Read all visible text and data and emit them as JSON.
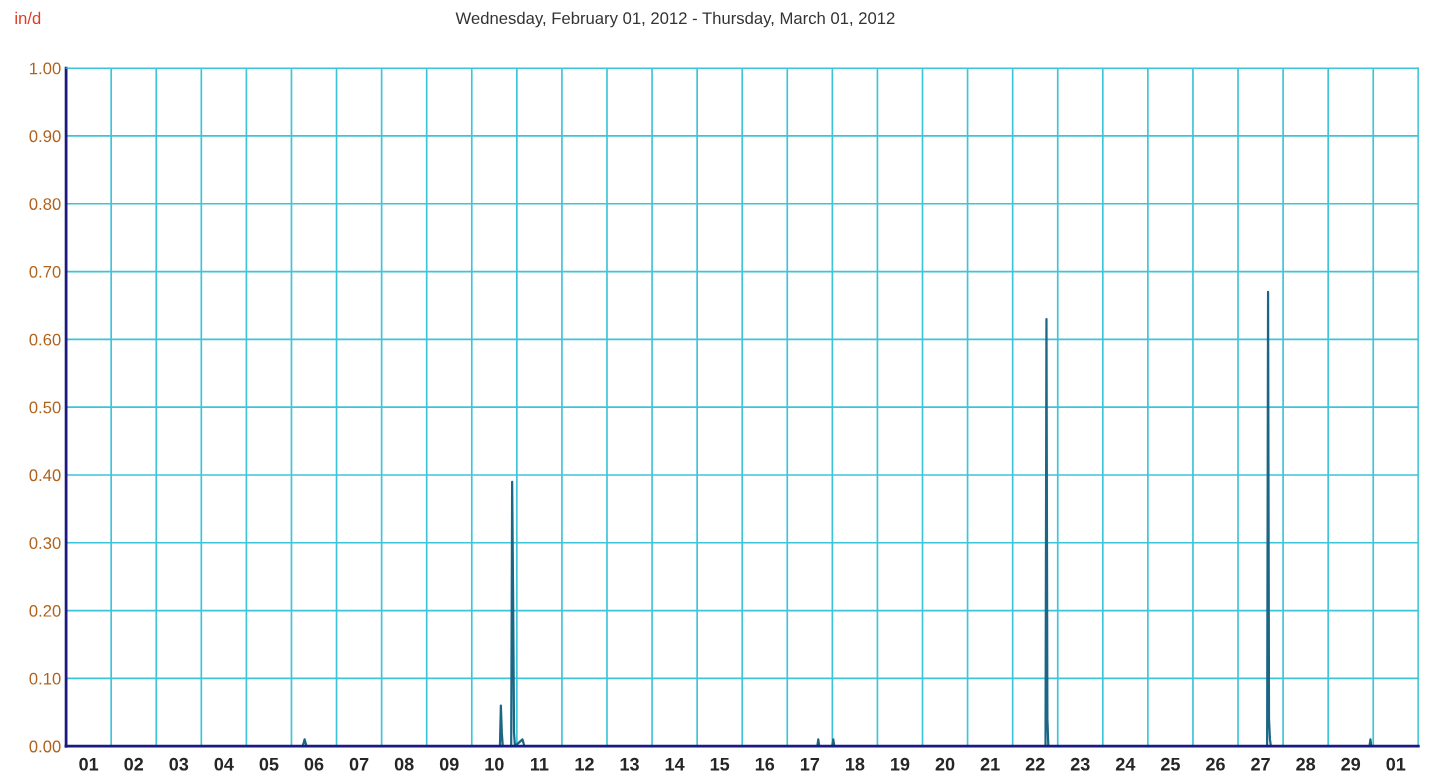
{
  "chart_data": {
    "type": "line",
    "title": "Wednesday, February 01, 2012 - Thursday, March 01, 2012",
    "ylabel": "in/d",
    "x": [
      "2012-02-01T00:00",
      "2012-02-06T06:00",
      "2012-02-06T07:00",
      "2012-02-06T08:00",
      "2012-02-10T15:00",
      "2012-02-10T15:30",
      "2012-02-10T16:00",
      "2012-02-10T16:30",
      "2012-02-10T21:00",
      "2012-02-10T21:30",
      "2012-02-10T22:00",
      "2012-02-10T22:30",
      "2012-02-10T23:00",
      "2012-02-11T03:00",
      "2012-02-11T04:00",
      "2012-02-17T16:00",
      "2012-02-17T16:30",
      "2012-02-17T17:00",
      "2012-02-18T00:00",
      "2012-02-18T00:30",
      "2012-02-18T01:00",
      "2012-02-22T17:30",
      "2012-02-22T18:00",
      "2012-02-22T18:30",
      "2012-02-22T19:00",
      "2012-02-27T15:30",
      "2012-02-27T16:00",
      "2012-02-27T16:30",
      "2012-02-27T17:00",
      "2012-02-27T17:30",
      "2012-02-29T22:00",
      "2012-02-29T22:30",
      "2012-02-29T23:00",
      "2012-03-02T00:00"
    ],
    "series": [
      {
        "color": "#1b6585",
        "values": [
          0,
          0,
          0.01,
          0,
          0,
          0.06,
          0.02,
          0,
          0,
          0.39,
          0.23,
          0.02,
          0,
          0.01,
          0,
          0,
          0.01,
          0,
          0,
          0.01,
          0,
          0,
          0.63,
          0.04,
          0,
          0,
          0.67,
          0.04,
          0.01,
          0,
          0,
          0.01,
          0,
          0
        ]
      }
    ],
    "xlim": [
      "2012-02-01T00:00",
      "2012-03-02T00:00"
    ],
    "xticks": [
      {
        "value": "2012-02-01T00:00",
        "label": null
      },
      {
        "value": "2012-02-02T00:00",
        "label": null
      },
      {
        "value": "2012-02-03T00:00",
        "label": null
      },
      {
        "value": "2012-02-04T00:00",
        "label": null
      },
      {
        "value": "2012-02-05T00:00",
        "label": null
      },
      {
        "value": "2012-02-06T00:00",
        "label": null
      },
      {
        "value": "2012-02-07T00:00",
        "label": null
      },
      {
        "value": "2012-02-08T00:00",
        "label": null
      },
      {
        "value": "2012-02-09T00:00",
        "label": null
      },
      {
        "value": "2012-02-10T00:00",
        "label": null
      },
      {
        "value": "2012-02-11T00:00",
        "label": null
      },
      {
        "value": "2012-02-12T00:00",
        "label": null
      },
      {
        "value": "2012-02-13T00:00",
        "label": null
      },
      {
        "value": "2012-02-14T00:00",
        "label": null
      },
      {
        "value": "2012-02-15T00:00",
        "label": null
      },
      {
        "value": "2012-02-16T00:00",
        "label": null
      },
      {
        "value": "2012-02-17T00:00",
        "label": null
      },
      {
        "value": "2012-02-18T00:00",
        "label": null
      },
      {
        "value": "2012-02-19T00:00",
        "label": null
      },
      {
        "value": "2012-02-20T00:00",
        "label": null
      },
      {
        "value": "2012-02-21T00:00",
        "label": null
      },
      {
        "value": "2012-02-22T00:00",
        "label": null
      },
      {
        "value": "2012-02-23T00:00",
        "label": null
      },
      {
        "value": "2012-02-24T00:00",
        "label": null
      },
      {
        "value": "2012-02-25T00:00",
        "label": null
      },
      {
        "value": "2012-02-26T00:00",
        "label": null
      },
      {
        "value": "2012-02-27T00:00",
        "label": null
      },
      {
        "value": "2012-02-28T00:00",
        "label": null
      },
      {
        "value": "2012-02-29T00:00",
        "label": null
      },
      {
        "value": "2012-03-01T00:00",
        "label": null
      },
      {
        "value": "2012-03-02T00:00",
        "label": null
      },
      {
        "value": "2012-02-01T12:00",
        "label": "01"
      },
      {
        "value": "2012-02-02T12:00",
        "label": "02"
      },
      {
        "value": "2012-02-03T12:00",
        "label": "03"
      },
      {
        "value": "2012-02-04T12:00",
        "label": "04"
      },
      {
        "value": "2012-02-05T12:00",
        "label": "05"
      },
      {
        "value": "2012-02-06T12:00",
        "label": "06"
      },
      {
        "value": "2012-02-07T12:00",
        "label": "07"
      },
      {
        "value": "2012-02-08T12:00",
        "label": "08"
      },
      {
        "value": "2012-02-09T12:00",
        "label": "09"
      },
      {
        "value": "2012-02-10T12:00",
        "label": "10"
      },
      {
        "value": "2012-02-11T12:00",
        "label": "11"
      },
      {
        "value": "2012-02-12T12:00",
        "label": "12"
      },
      {
        "value": "2012-02-13T12:00",
        "label": "13"
      },
      {
        "value": "2012-02-14T12:00",
        "label": "14"
      },
      {
        "value": "2012-02-15T12:00",
        "label": "15"
      },
      {
        "value": "2012-02-16T12:00",
        "label": "16"
      },
      {
        "value": "2012-02-17T12:00",
        "label": "17"
      },
      {
        "value": "2012-02-18T12:00",
        "label": "18"
      },
      {
        "value": "2012-02-19T12:00",
        "label": "19"
      },
      {
        "value": "2012-02-20T12:00",
        "label": "20"
      },
      {
        "value": "2012-02-21T12:00",
        "label": "21"
      },
      {
        "value": "2012-02-22T12:00",
        "label": "22"
      },
      {
        "value": "2012-02-23T12:00",
        "label": "23"
      },
      {
        "value": "2012-02-24T12:00",
        "label": "24"
      },
      {
        "value": "2012-02-25T12:00",
        "label": "25"
      },
      {
        "value": "2012-02-26T12:00",
        "label": "26"
      },
      {
        "value": "2012-02-27T12:00",
        "label": "27"
      },
      {
        "value": "2012-02-28T12:00",
        "label": "28"
      },
      {
        "value": "2012-02-29T12:00",
        "label": "29"
      },
      {
        "value": "2012-03-01T12:00",
        "label": "01"
      }
    ],
    "ylim": [
      0,
      1
    ],
    "yticks": [
      {
        "value": 0,
        "label": "0.00"
      },
      {
        "value": 0.1,
        "label": "0.10"
      },
      {
        "value": 0.2,
        "label": "0.20"
      },
      {
        "value": 0.3,
        "label": "0.30"
      },
      {
        "value": 0.4,
        "label": "0.40"
      },
      {
        "value": 0.5,
        "label": "0.50"
      },
      {
        "value": 0.6,
        "label": "0.60"
      },
      {
        "value": 0.7,
        "label": "0.70"
      },
      {
        "value": 0.8,
        "label": "0.80"
      },
      {
        "value": 0.9,
        "label": "0.90"
      },
      {
        "value": 1,
        "label": "1.00"
      }
    ],
    "grid": true
  }
}
